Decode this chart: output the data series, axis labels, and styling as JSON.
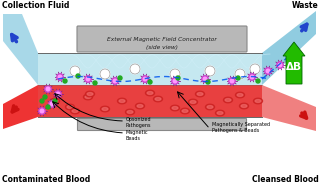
{
  "bg_color": "#ffffff",
  "title_top_left": "Collection Fluid",
  "title_top_right": "Waste",
  "title_bot_left": "Contaminated Blood",
  "title_bot_right": "Cleansed Blood",
  "magnet_label_line1": "External Magnetic Field Concentrator",
  "magnet_label_line2": "(side view)",
  "delta_b_label": "ΔB",
  "legend_label_1": "Opsonized\nPathogens",
  "legend_label_2": "Magnetic\nBeads",
  "legend_label_3": "Magnetically Separated\nPathogens & Beads",
  "col_fluid_color": "#a8d8e8",
  "waste_color": "#90cce0",
  "blood_in_color": "#ee3333",
  "blood_out_color": "#f08080",
  "channel_blue_color": "#c5e8f0",
  "channel_red_color": "#e84040",
  "channel_pink_color": "#f07070",
  "magnet_box_color": "#b8b8b8",
  "magnet_box_edge": "#888888",
  "magnet_plate_color": "#b8b8b8",
  "delta_b_color": "#22bb00",
  "blue_arrow_color": "#2244cc",
  "red_arrow_color": "#cc1111",
  "border_color": "#666666",
  "rbc_dark": "#cc2222",
  "rbc_light": "#ff8888",
  "wbc_color": "#ffffff",
  "pathogen_outer": "#cc44cc",
  "pathogen_inner": "#ff99ff",
  "pathogen_spike": "#882288",
  "bead_color": "#22aa22",
  "dashed_line_color": "#0055ee",
  "field_line_color": "#d0eef8"
}
